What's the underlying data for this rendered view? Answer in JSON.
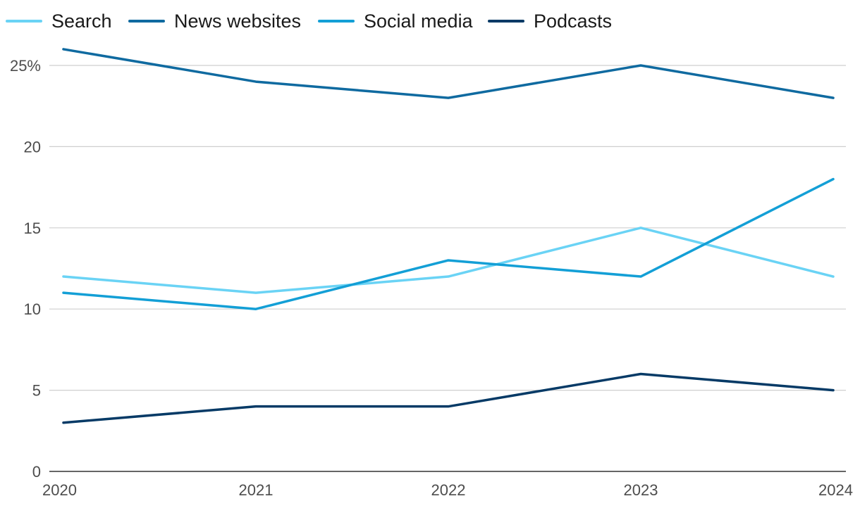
{
  "chart_data": {
    "type": "line",
    "title": "",
    "xlabel": "",
    "ylabel": "",
    "x": [
      "2020",
      "2021",
      "2022",
      "2023",
      "2024"
    ],
    "ylim": [
      0,
      25
    ],
    "yticks": [
      0,
      5,
      10,
      15,
      20,
      25
    ],
    "ytick_labels": [
      "0",
      "5",
      "10",
      "15",
      "20",
      "25%"
    ],
    "grid": true,
    "legend_position": "top-left",
    "series": [
      {
        "name": "Search",
        "color": "#6ad3f5",
        "values": [
          12,
          11,
          12,
          15,
          12
        ]
      },
      {
        "name": "News websites",
        "color": "#0f6aa0",
        "values": [
          26,
          24,
          23,
          25,
          23
        ]
      },
      {
        "name": "Social media",
        "color": "#139fd6",
        "values": [
          11,
          10,
          13,
          12,
          18
        ]
      },
      {
        "name": "Podcasts",
        "color": "#063a66",
        "values": [
          3,
          4,
          4,
          6,
          5
        ]
      }
    ]
  }
}
